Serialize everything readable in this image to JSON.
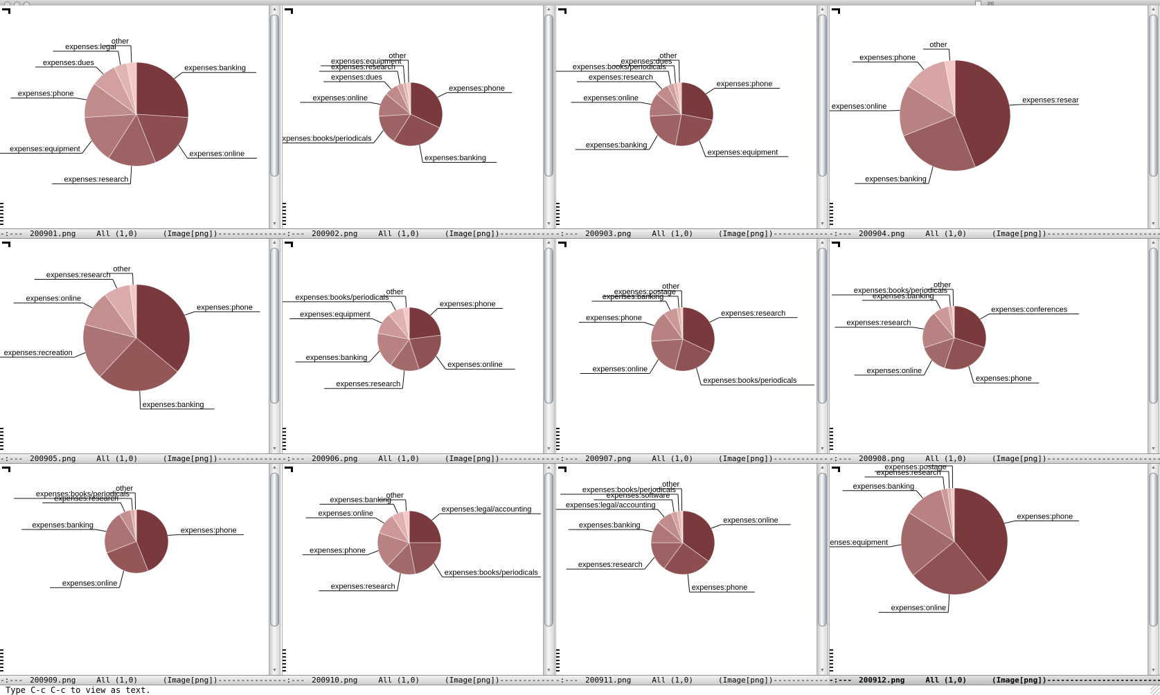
{
  "titlebar": {
    "title_fragment": "pg",
    "buttons": [
      "close",
      "minimize",
      "zoom"
    ]
  },
  "minibuffer": {
    "message": "Type C-c C-c to view as text."
  },
  "modeline": {
    "prefix": "-:---",
    "position": "All (1,0)",
    "mode": "(Image[png])",
    "dashes": "------------------------------------------------------------"
  },
  "colors": {
    "slice_dark": "#7a3a3d",
    "slice_light": "#f5c9c6",
    "label_text": "#000000",
    "modeline_bg_top": "#f2f2f2",
    "modeline_bg_bottom": "#cdcdcd",
    "pane_bg": "#ffffff"
  },
  "chart_data": [
    {
      "type": "pie",
      "file": "200901.png",
      "labels": [
        "expenses:banking",
        "expenses:online",
        "expenses:research",
        "expenses:equipment",
        "expenses:phone",
        "expenses:dues",
        "expenses:legal",
        "other"
      ],
      "values": [
        0.26,
        0.18,
        0.15,
        0.15,
        0.11,
        0.08,
        0.04,
        0.03
      ]
    },
    {
      "type": "pie",
      "file": "200902.png",
      "labels": [
        "expenses:phone",
        "expenses:banking",
        "expenses:books/periodicals",
        "expenses:online",
        "expenses:dues",
        "expenses:research",
        "expenses:equipment",
        "other"
      ],
      "values": [
        0.32,
        0.27,
        0.15,
        0.12,
        0.07,
        0.03,
        0.02,
        0.02
      ]
    },
    {
      "type": "pie",
      "file": "200903.png",
      "labels": [
        "expenses:phone",
        "expenses:equipment",
        "expenses:banking",
        "expenses:online",
        "expenses:research",
        "expenses:books/periodicals",
        "expenses:dues",
        "other"
      ],
      "values": [
        0.28,
        0.25,
        0.21,
        0.12,
        0.07,
        0.03,
        0.02,
        0.02
      ]
    },
    {
      "type": "pie",
      "file": "200904.png",
      "labels": [
        "expenses:research",
        "expenses:banking",
        "expenses:online",
        "expenses:phone",
        "other"
      ],
      "values": [
        0.44,
        0.25,
        0.15,
        0.13,
        0.03
      ]
    },
    {
      "type": "pie",
      "file": "200905.png",
      "labels": [
        "expenses:phone",
        "expenses:banking",
        "expenses:recreation",
        "expenses:online",
        "expenses:research",
        "other"
      ],
      "values": [
        0.36,
        0.26,
        0.17,
        0.11,
        0.08,
        0.02
      ]
    },
    {
      "type": "pie",
      "file": "200906.png",
      "labels": [
        "expenses:phone",
        "expenses:online",
        "expenses:research",
        "expenses:banking",
        "expenses:equipment",
        "expenses:books/periodicals",
        "other"
      ],
      "values": [
        0.23,
        0.22,
        0.15,
        0.18,
        0.11,
        0.08,
        0.03
      ]
    },
    {
      "type": "pie",
      "file": "200907.png",
      "labels": [
        "expenses:research",
        "expenses:books/periodicals",
        "expenses:online",
        "expenses:phone",
        "expenses:banking",
        "expenses:postage",
        "other"
      ],
      "values": [
        0.32,
        0.22,
        0.2,
        0.16,
        0.07,
        0.02,
        0.01
      ]
    },
    {
      "type": "pie",
      "file": "200908.png",
      "labels": [
        "expenses:conferences",
        "expenses:phone",
        "expenses:online",
        "expenses:research",
        "expenses:banking",
        "expenses:books/periodicals",
        "other"
      ],
      "values": [
        0.3,
        0.25,
        0.15,
        0.19,
        0.08,
        0.02,
        0.01
      ]
    },
    {
      "type": "pie",
      "file": "200909.png",
      "labels": [
        "expenses:phone",
        "expenses:online",
        "expenses:banking",
        "expenses:research",
        "expenses:books/periodicals",
        "other"
      ],
      "values": [
        0.44,
        0.25,
        0.22,
        0.06,
        0.02,
        0.01
      ]
    },
    {
      "type": "pie",
      "file": "200910.png",
      "labels": [
        "expenses:legal/accounting",
        "expenses:books/periodicals",
        "expenses:research",
        "expenses:phone",
        "expenses:online",
        "expenses:banking",
        "other"
      ],
      "values": [
        0.25,
        0.22,
        0.15,
        0.18,
        0.11,
        0.06,
        0.03
      ]
    },
    {
      "type": "pie",
      "file": "200911.png",
      "labels": [
        "expenses:online",
        "expenses:phone",
        "expenses:research",
        "expenses:banking",
        "expenses:legal/accounting",
        "expenses:software",
        "expenses:books/periodicals",
        "other"
      ],
      "values": [
        0.35,
        0.25,
        0.15,
        0.11,
        0.08,
        0.03,
        0.02,
        0.01
      ]
    },
    {
      "type": "pie",
      "file": "200912.png",
      "labels": [
        "expenses:phone",
        "expenses:online",
        "expenses:equipment",
        "expenses:banking",
        "expenses:research",
        "expenses:postage",
        "other"
      ],
      "values": [
        0.39,
        0.25,
        0.2,
        0.12,
        0.02,
        0.01,
        0.01
      ]
    }
  ]
}
